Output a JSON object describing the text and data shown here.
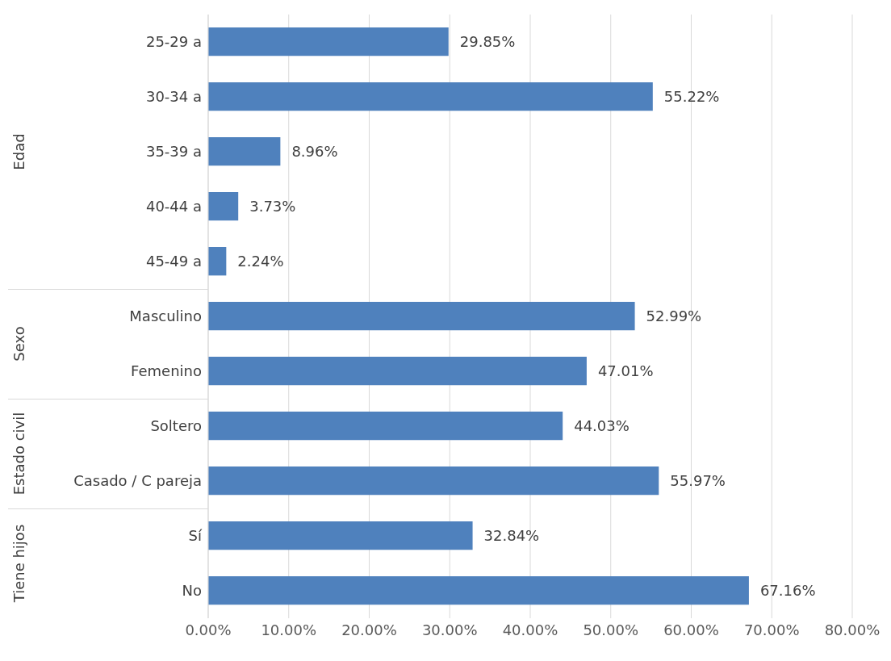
{
  "chart_data": [
    {
      "type": "bar",
      "orientation": "horizontal",
      "ylabel": "Edad",
      "tick_labels": "y",
      "categories": [
        "25-29 a",
        "30-34 a",
        "35-39 a",
        "40-44 a",
        "45-49 a"
      ],
      "values": [
        29.85,
        55.22,
        8.96,
        3.73,
        2.24
      ],
      "value_labels": [
        "29.85%",
        "55.22%",
        "8.96%",
        "3.73%",
        "2.24%"
      ],
      "color": "#4f81bd",
      "xlim": [
        0,
        80
      ],
      "xticks": [
        0,
        10,
        20,
        30,
        40,
        50,
        60,
        70,
        80
      ],
      "grid": "x"
    },
    {
      "type": "bar",
      "orientation": "horizontal",
      "ylabel": "Sexo",
      "tick_labels": "y",
      "categories": [
        "Masculino",
        "Femenino"
      ],
      "values": [
        52.99,
        47.01
      ],
      "value_labels": [
        "52.99%",
        "47.01%"
      ],
      "color": "#4f81bd",
      "xlim": [
        0,
        80
      ],
      "xticks": [
        0,
        10,
        20,
        30,
        40,
        50,
        60,
        70,
        80
      ],
      "grid": "x"
    },
    {
      "type": "bar",
      "orientation": "horizontal",
      "ylabel": "Estado civil",
      "tick_labels": "y",
      "categories": [
        "Soltero",
        "Casado / C pareja"
      ],
      "values": [
        44.03,
        55.97
      ],
      "value_labels": [
        "44.03%",
        "55.97%"
      ],
      "color": "#4f81bd",
      "xlim": [
        0,
        80
      ],
      "xticks": [
        0,
        10,
        20,
        30,
        40,
        50,
        60,
        70,
        80
      ],
      "grid": "x"
    },
    {
      "type": "bar",
      "orientation": "horizontal",
      "ylabel": "Tiene hijos",
      "categories": [
        "Sí",
        "No"
      ],
      "values": [
        32.84,
        67.16
      ],
      "value_labels": [
        "32.84%",
        "67.16%"
      ],
      "color": "#4f81bd",
      "xlim": [
        0,
        80
      ],
      "xticks": [
        {
          "value": 0,
          "label": "0.00%"
        },
        {
          "value": 10,
          "label": "10.00%"
        },
        {
          "value": 20,
          "label": "20.00%"
        },
        {
          "value": 30,
          "label": "30.00%"
        },
        {
          "value": 40,
          "label": "40.00%"
        },
        {
          "value": 50,
          "label": "50.00%"
        },
        {
          "value": 60,
          "label": "60.00%"
        },
        {
          "value": 70,
          "label": "70.00%"
        },
        {
          "value": 80,
          "label": "80.00%"
        }
      ],
      "grid": "x"
    }
  ]
}
